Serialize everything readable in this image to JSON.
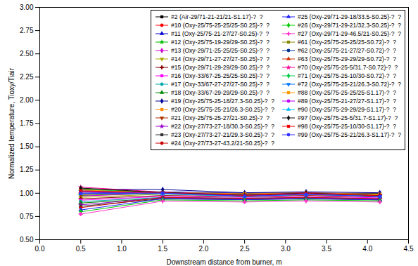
{
  "chart_data": {
    "type": "line",
    "xlabel": "Downstream distance from burner, m",
    "ylabel": "Normalized temperature, Tioxy/Tiair",
    "xlim": [
      0.0,
      4.5
    ],
    "ylim": [
      0.5,
      3.0
    ],
    "xticks": [
      {
        "value": 0.0,
        "label": "0.0"
      },
      0.5,
      {
        "value": 1.0,
        "label": "1.0"
      },
      1.5,
      {
        "value": 2.0,
        "label": "2.0"
      },
      2.5,
      {
        "value": 3.0,
        "label": "3.0"
      },
      3.5,
      {
        "value": 4.0,
        "label": "4.0"
      },
      4.5
    ],
    "yticks": [
      {
        "value": 0.5,
        "label": "0.50"
      },
      0.75,
      {
        "value": 1.0,
        "label": "1.00"
      },
      1.25,
      {
        "value": 1.5,
        "label": "1.50"
      },
      1.75,
      {
        "value": 2.0,
        "label": "2.00"
      },
      2.25,
      {
        "value": 2.5,
        "label": "2.50"
      },
      2.75,
      {
        "value": 3.0,
        "label": "3.00"
      }
    ],
    "grid": false,
    "legend": "upper right",
    "x": [
      0.5,
      1.5,
      2.5,
      3.25,
      4.15
    ],
    "series": [
      {
        "name": "#2 (Air-29/71-21-21/21-S1.17)-?  ?",
        "color": "#000000",
        "marker": "square",
        "values": [
          1.0,
          1.0,
          1.0,
          1.0,
          1.0
        ]
      },
      {
        "name": "#10 (Oxy-25/75-25-25/25-S0.25)-?  ?",
        "color": "#ff0000",
        "marker": "circle",
        "values": [
          1.02,
          1.0,
          0.995,
          1.0,
          0.975
        ]
      },
      {
        "name": "#11 (Oxy-25/75-21-27/27-S0.25)-?  ?",
        "color": "#0000cc",
        "marker": "triangle-up",
        "values": [
          1.0,
          1.015,
          1.0,
          1.005,
          0.99
        ]
      },
      {
        "name": "#12 (Oxy-25/75-19-29/29-S0.25)-?  ?",
        "color": "#00bb00",
        "marker": "pentagon",
        "values": [
          0.975,
          1.005,
          0.99,
          1.0,
          0.985
        ]
      },
      {
        "name": "#13 (Oxy-29/71-25-25/25-S0.25)-?  ?",
        "color": "#cc00cc",
        "marker": "diamond",
        "values": [
          0.97,
          1.0,
          0.985,
          0.995,
          0.975
        ]
      },
      {
        "name": "#14 (Oxy-29/71-27-27/27-S0.25)-?  ?",
        "color": "#aaaa00",
        "marker": "triangle-down",
        "values": [
          0.955,
          0.99,
          0.975,
          0.985,
          0.97
        ]
      },
      {
        "name": "#15 (Oxy-29/71-29-29/29-S0.25)-?  ?",
        "color": "#880000",
        "marker": "hexagon",
        "values": [
          0.94,
          0.975,
          0.965,
          0.975,
          0.96
        ]
      },
      {
        "name": "#16 (Oxy-33/67-25-25/25-S0.25)-?  ?",
        "color": "#ff00ff",
        "marker": "square",
        "values": [
          0.925,
          0.965,
          0.955,
          0.965,
          0.95
        ]
      },
      {
        "name": "#17 (Oxy-33/67-27-27/27-S0.25)-?  ?",
        "color": "#00aaaa",
        "marker": "circle",
        "values": [
          0.91,
          0.955,
          0.945,
          0.955,
          0.94
        ]
      },
      {
        "name": "#18 (Oxy-33/67-29-29/29-S0.25)-?  ?",
        "color": "#008800",
        "marker": "triangle-up",
        "values": [
          0.895,
          0.945,
          0.935,
          0.945,
          0.93
        ]
      },
      {
        "name": "#19 (Oxy-25/75-25-18/27.3-S0.25)-?  ?",
        "color": "#000099",
        "marker": "diamond",
        "values": [
          1.045,
          1.04,
          1.005,
          1.015,
          1.005
        ]
      },
      {
        "name": "#20 (Oxy-25/75-25-21/26.3-S0.25)-?  ?",
        "color": "#ff8800",
        "marker": "square",
        "values": [
          1.015,
          1.01,
          0.995,
          1.005,
          0.99
        ]
      },
      {
        "name": "#21 (Oxy-25/75-25-27/21-S0.25)-?  ?",
        "color": "#aa3300",
        "marker": "triangle-down",
        "values": [
          0.985,
          0.995,
          0.98,
          0.99,
          0.978
        ]
      },
      {
        "name": "#22 (Oxy-27/73-27-18/30.3-S0.25)-?  ?",
        "color": "#9900cc",
        "marker": "pentagon",
        "values": [
          0.875,
          0.95,
          0.94,
          0.95,
          0.938
        ]
      },
      {
        "name": "#23 (Oxy-27/73-27-21/29.3-S0.25)-?  ?",
        "color": "#333333",
        "marker": "square",
        "values": [
          0.86,
          0.94,
          0.93,
          0.942,
          0.928
        ]
      },
      {
        "name": "#24 (Oxy-27/73-27-43.2/21-S0.25)-?  ?",
        "color": "#cc0000",
        "marker": "circle",
        "values": [
          0.845,
          0.955,
          0.945,
          0.955,
          0.942
        ]
      },
      {
        "name": "#25 (Oxy-29/71-29-18/33.5-S0.25)-?  ?",
        "color": "#2222ff",
        "marker": "triangle-up",
        "values": [
          0.82,
          0.94,
          0.93,
          0.94,
          0.928
        ]
      },
      {
        "name": "#26 (Oxy-29/71-29-21/32.3-S0.25)-?  ?",
        "color": "#00cc00",
        "marker": "diamond",
        "values": [
          0.8,
          0.928,
          0.918,
          0.928,
          0.918
        ]
      },
      {
        "name": "#27 (Oxy-29/71-29-46.5/21-S0.25)-?  ?",
        "color": "#ff33cc",
        "marker": "hexagon",
        "values": [
          0.775,
          0.915,
          0.905,
          0.917,
          0.905
        ]
      },
      {
        "name": "#61 (Oxy-25/75-25-25/25-S0.72)-?  ?",
        "color": "#888800",
        "marker": "square",
        "values": [
          1.05,
          1.005,
          0.975,
          1.0,
          0.972
        ]
      },
      {
        "name": "#62 (Oxy-25/75-21-27/27-S0.72)-?  ?",
        "color": "#003399",
        "marker": "circle",
        "values": [
          1.035,
          1.002,
          0.968,
          0.995,
          0.968
        ]
      },
      {
        "name": "#63 (Oxy-25/75-29-29/29-S0.72)-?  ?",
        "color": "#cc3300",
        "marker": "triangle-up",
        "values": [
          1.018,
          0.998,
          0.958,
          0.985,
          0.962
        ]
      },
      {
        "name": "#70 (Oxy-25/75-25-5/31.7-S0.72)-?  ?",
        "color": "#ff0099",
        "marker": "pentagon",
        "values": [
          1.065,
          1.012,
          0.978,
          1.005,
          0.976
        ]
      },
      {
        "name": "#71 (Oxy-25/75-25-10/30-S0.72)-?  ?",
        "color": "#00cc44",
        "marker": "diamond",
        "values": [
          1.04,
          1.008,
          0.972,
          1.002,
          0.968
        ]
      },
      {
        "name": "#72 (Oxy-25/75-25-21/26.3-S0.72)-?  ?",
        "color": "#0077ff",
        "marker": "triangle-down",
        "values": [
          1.018,
          1.002,
          0.968,
          0.995,
          0.962
        ]
      },
      {
        "name": "#88 (Oxy-25/75-25-25/25-S1.17)-?  ?",
        "color": "#ff9900",
        "marker": "square",
        "values": [
          1.035,
          1.002,
          0.975,
          0.998,
          0.982
        ]
      },
      {
        "name": "#89 (Oxy-25/75-21-27/27-S1.17)-?  ?",
        "color": "#bb00ff",
        "marker": "circle",
        "values": [
          1.015,
          1.002,
          0.972,
          0.992,
          0.975
        ]
      },
      {
        "name": "#90 (Oxy-25/75-29-29/29-S1.17)-?  ?",
        "color": "#00bbff",
        "marker": "triangle-up",
        "values": [
          0.995,
          0.992,
          0.965,
          0.985,
          0.968
        ]
      },
      {
        "name": "#97 (Oxy-25/75-25-5/31.7-S1.17)-?  ?",
        "color": "#111111",
        "marker": "diamond",
        "values": [
          1.055,
          1.008,
          0.978,
          1.002,
          0.975
        ]
      },
      {
        "name": "#98 (Oxy-25/75-25-10/30-S1.17)-?  ?",
        "color": "#ee0000",
        "marker": "square",
        "values": [
          1.025,
          1.005,
          0.975,
          0.998,
          0.972
        ]
      },
      {
        "name": "#99 (Oxy-25/75-25-21/26.3-S1.17)-?  ?",
        "color": "#3333ff",
        "marker": "circle",
        "values": [
          0.998,
          1.002,
          0.968,
          0.988,
          0.965
        ]
      }
    ]
  }
}
